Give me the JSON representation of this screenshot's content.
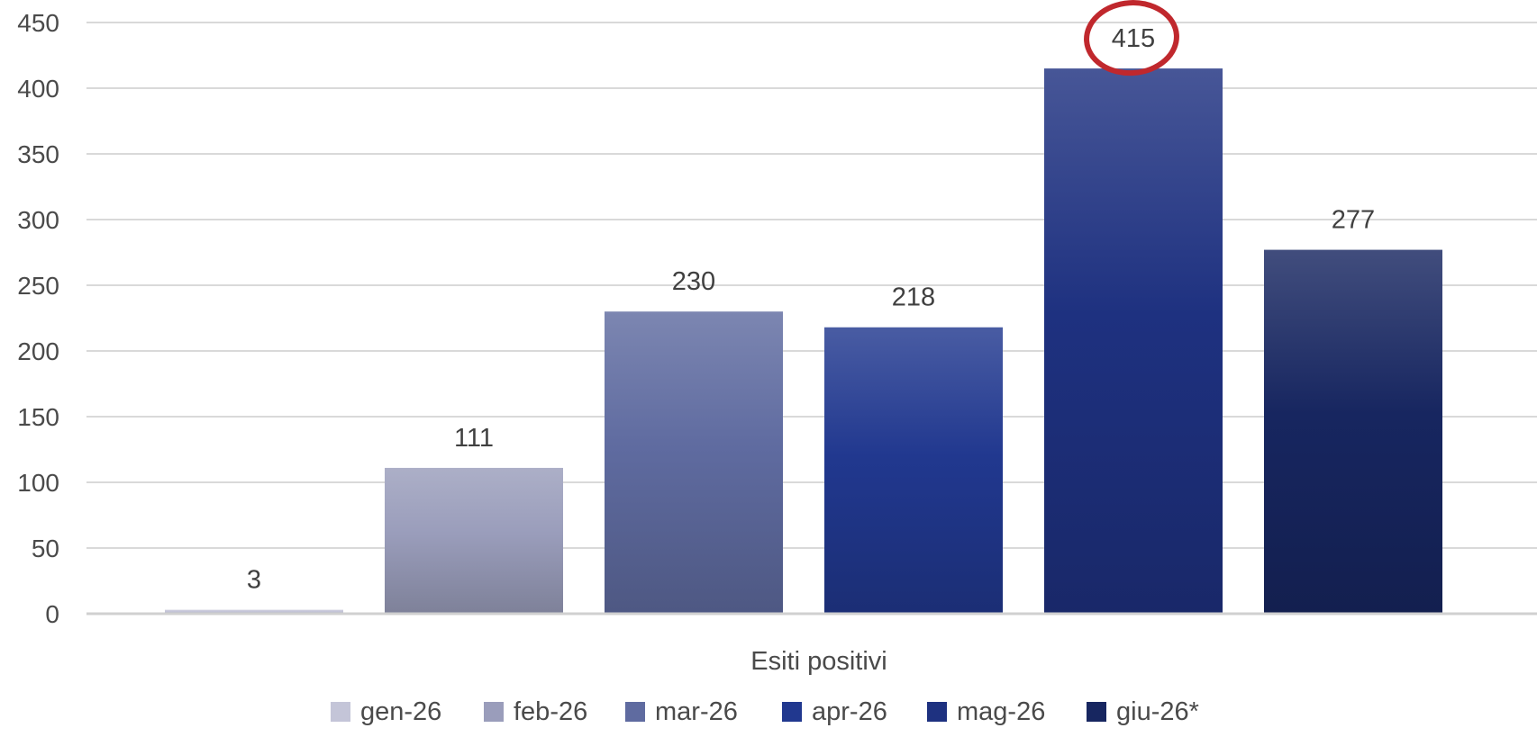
{
  "chart_data": {
    "type": "bar",
    "categories": [
      "Esiti positivi"
    ],
    "series": [
      {
        "name": "gen-26",
        "values": [
          3
        ],
        "color": "#c4c5d8"
      },
      {
        "name": "feb-26",
        "values": [
          111
        ],
        "color": "#9a9dbb"
      },
      {
        "name": "mar-26",
        "values": [
          230
        ],
        "color": "#5f6ba0"
      },
      {
        "name": "apr-26",
        "values": [
          218
        ],
        "color": "#21388f"
      },
      {
        "name": "mag-26",
        "values": [
          415
        ],
        "color": "#1e3180"
      },
      {
        "name": "giu-26*",
        "values": [
          277
        ],
        "color": "#172660"
      }
    ],
    "xlabel": "Esiti positivi",
    "ylabel": "",
    "ylim": [
      0,
      450
    ],
    "yticks": [
      0,
      50,
      100,
      150,
      200,
      250,
      300,
      350,
      400,
      450
    ],
    "grid": true,
    "legend_position": "bottom",
    "highlight": {
      "series": "mag-26",
      "style": "red circle around data label",
      "color": "#c0282d"
    }
  }
}
